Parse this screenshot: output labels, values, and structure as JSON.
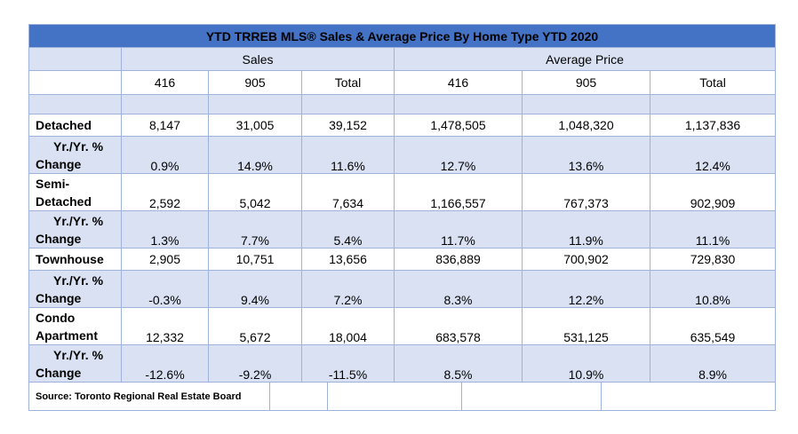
{
  "title": "YTD TRREB MLS® Sales & Average Price By Home Type YTD 2020",
  "groups": {
    "sales": "Sales",
    "avg_price": "Average Price"
  },
  "subheaders": [
    "416",
    "905",
    "Total",
    "416",
    "905",
    "Total"
  ],
  "rows": [
    {
      "label": [
        "Detached"
      ],
      "values": [
        "8,147",
        "31,005",
        "39,152",
        "1,478,505",
        "1,048,320",
        "1,137,836"
      ]
    },
    {
      "label": [
        "Yr./Yr. %",
        "Change"
      ],
      "values": [
        "0.9%",
        "14.9%",
        "11.6%",
        "12.7%",
        "13.6%",
        "12.4%"
      ]
    },
    {
      "label": [
        "Semi-",
        "Detached"
      ],
      "values": [
        "2,592",
        "5,042",
        "7,634",
        "1,166,557",
        "767,373",
        "902,909"
      ]
    },
    {
      "label": [
        "Yr./Yr. %",
        "Change"
      ],
      "values": [
        "1.3%",
        "7.7%",
        "5.4%",
        "11.7%",
        "11.9%",
        "11.1%"
      ]
    },
    {
      "label": [
        "Townhouse"
      ],
      "values": [
        "2,905",
        "10,751",
        "13,656",
        "836,889",
        "700,902",
        "729,830"
      ]
    },
    {
      "label": [
        "Yr./Yr. %",
        "Change"
      ],
      "values": [
        "-0.3%",
        "9.4%",
        "7.2%",
        "8.3%",
        "12.2%",
        "10.8%"
      ]
    },
    {
      "label": [
        "Condo",
        "Apartment"
      ],
      "values": [
        "12,332",
        "5,672",
        "18,004",
        "683,578",
        "531,125",
        "635,549"
      ]
    },
    {
      "label": [
        "Yr./Yr. %",
        "Change"
      ],
      "values": [
        "-12.6%",
        "-9.2%",
        "-11.5%",
        "8.5%",
        "10.9%",
        "8.9%"
      ]
    }
  ],
  "source": "Source: Toronto Regional Real Estate Board"
}
